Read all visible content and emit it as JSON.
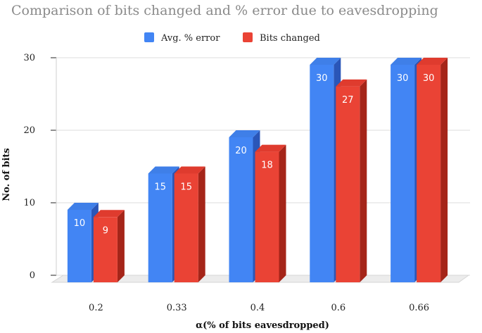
{
  "chart_data": {
    "type": "bar",
    "title": "Comparison of bits changed and % error due to eavesdropping",
    "xlabel": "α(% of bits eavesdropped)",
    "ylabel": "No. of bits",
    "categories": [
      "0.2",
      "0.33",
      "0.4",
      "0.6",
      "0.66"
    ],
    "series": [
      {
        "name": "Avg. % error",
        "values": [
          10,
          15,
          20,
          30,
          30
        ],
        "color": "#4285f4",
        "side_color": "#2a56b8",
        "top_color": "#3f7fe8"
      },
      {
        "name": "Bits changed",
        "values": [
          9,
          15,
          18,
          27,
          30
        ],
        "color": "#ea4335",
        "side_color": "#a52519",
        "top_color": "#df3b2e"
      }
    ],
    "yticks": [
      "0",
      "10",
      "20",
      "30"
    ],
    "ylim": [
      0,
      30
    ],
    "grid": true,
    "legend_position": "top",
    "style": "3d-bar",
    "data_labels": true
  }
}
